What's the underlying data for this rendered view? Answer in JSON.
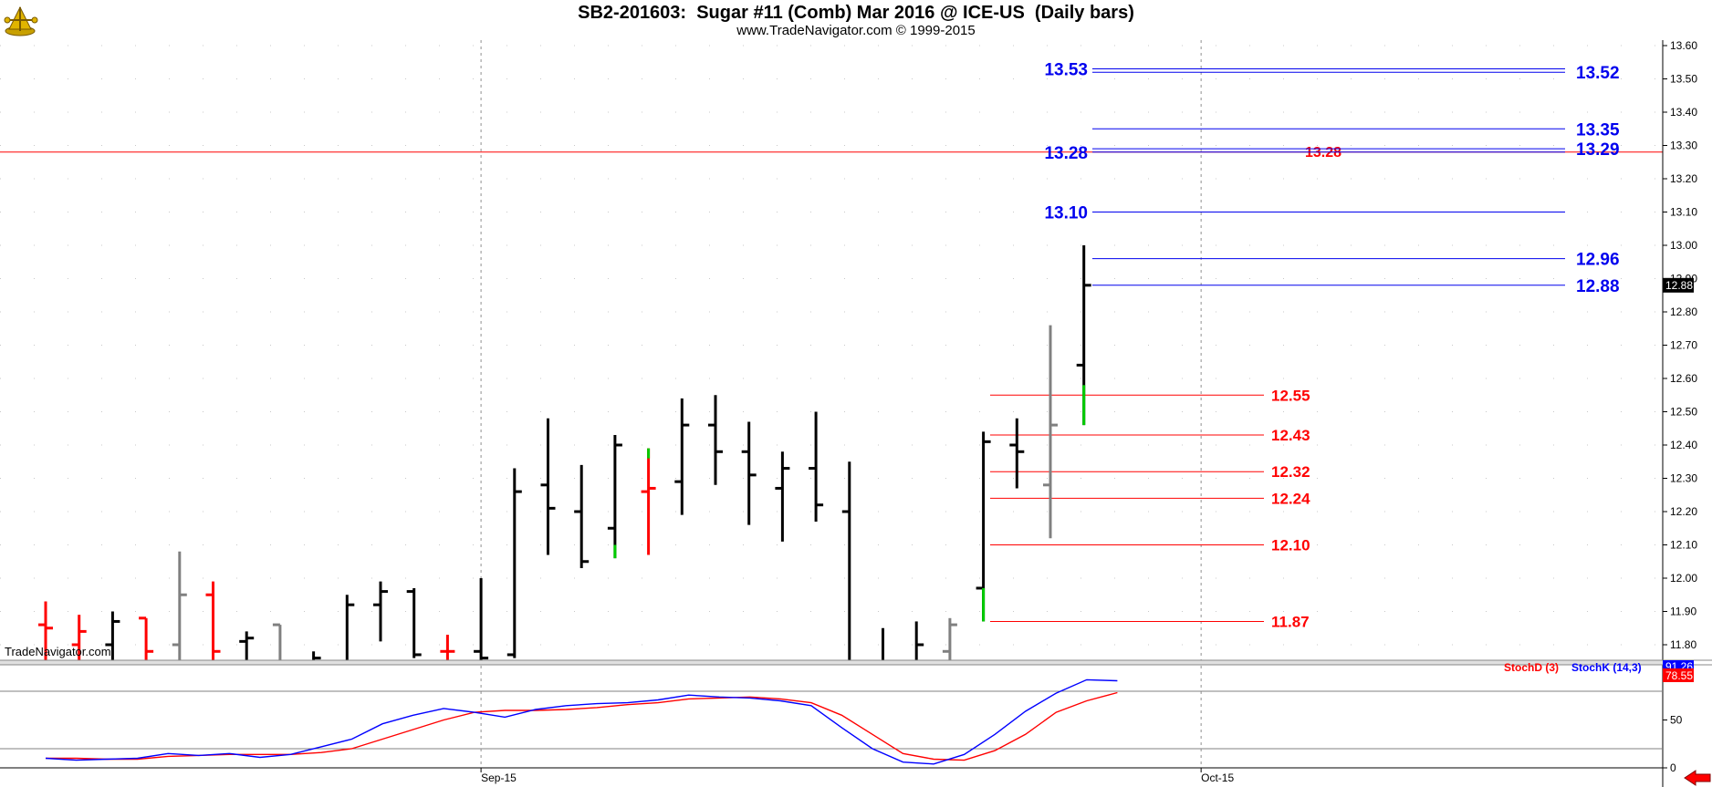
{
  "header": {
    "title": "SB2-201603:  Sugar #11 (Comb) Mar 2016 @ ICE-US  (Daily bars)",
    "subtitle": "www.TradeNavigator.com © 1999-2015",
    "watermark": "TradeNavigator.com"
  },
  "colors": {
    "up": "#000000",
    "down": "#000000",
    "red_bar": "#ff0000",
    "gray_bar": "#808080",
    "green_bar": "#00cc00",
    "blue_level": "#0000ee",
    "red_level": "#ff0000",
    "stoch_k": "#0000ff",
    "stoch_d": "#ff0000"
  },
  "chart_data": {
    "type": "bar",
    "price_axis": {
      "ylim": [
        11.75,
        13.6
      ],
      "ticks": [
        "13.60",
        "13.50",
        "13.40",
        "13.30",
        "13.20",
        "13.10",
        "13.00",
        "12.90",
        "12.80",
        "12.70",
        "12.60",
        "12.50",
        "12.40",
        "12.30",
        "12.20",
        "12.10",
        "12.00",
        "11.90",
        "11.80"
      ],
      "tick_values": [
        13.6,
        13.5,
        13.4,
        13.3,
        13.2,
        13.1,
        13.0,
        12.9,
        12.8,
        12.7,
        12.6,
        12.5,
        12.4,
        12.3,
        12.2,
        12.1,
        12.0,
        11.9,
        11.8
      ],
      "last_price": "12.88"
    },
    "x_axis": {
      "labels": [
        "Sep-15",
        "Oct-15"
      ],
      "label_bar_index": [
        13,
        34.5
      ]
    },
    "ohlc": [
      {
        "o": 11.86,
        "h": 11.93,
        "l": 11.6,
        "c": 11.85,
        "color": "red"
      },
      {
        "o": 11.8,
        "h": 11.89,
        "l": 11.6,
        "c": 11.84,
        "color": "red"
      },
      {
        "o": 11.8,
        "h": 11.9,
        "l": 11.6,
        "c": 11.87,
        "color": "black"
      },
      {
        "o": 11.88,
        "h": 11.88,
        "l": 11.6,
        "c": 11.78,
        "color": "red"
      },
      {
        "o": 11.8,
        "h": 12.08,
        "l": 11.6,
        "c": 11.95,
        "color": "gray"
      },
      {
        "o": 11.95,
        "h": 11.99,
        "l": 11.6,
        "c": 11.78,
        "color": "red"
      },
      {
        "o": 11.81,
        "h": 11.84,
        "l": 11.6,
        "c": 11.82,
        "color": "black"
      },
      {
        "o": 11.86,
        "h": 11.86,
        "l": 11.6,
        "c": 11.7,
        "color": "gray"
      },
      {
        "o": 11.7,
        "h": 11.78,
        "l": 11.6,
        "c": 11.76,
        "color": "black"
      },
      {
        "o": 11.7,
        "h": 11.95,
        "l": 11.6,
        "c": 11.92,
        "color": "black"
      },
      {
        "o": 11.92,
        "h": 11.99,
        "l": 11.81,
        "c": 11.96,
        "color": "black"
      },
      {
        "o": 11.96,
        "h": 11.97,
        "l": 11.76,
        "c": 11.77,
        "color": "black"
      },
      {
        "o": 11.78,
        "h": 11.83,
        "l": 11.73,
        "c": 11.78,
        "color": "red"
      },
      {
        "o": 11.78,
        "h": 12.0,
        "l": 11.73,
        "c": 11.76,
        "color": "black"
      },
      {
        "o": 11.77,
        "h": 12.33,
        "l": 11.76,
        "c": 12.26,
        "color": "black"
      },
      {
        "o": 12.28,
        "h": 12.48,
        "l": 12.07,
        "c": 12.21,
        "color": "black"
      },
      {
        "o": 12.2,
        "h": 12.34,
        "l": 12.03,
        "c": 12.05,
        "color": "black"
      },
      {
        "o": 12.15,
        "h": 12.43,
        "l": 12.06,
        "c": 12.4,
        "color": "black"
      },
      {
        "o": 12.26,
        "h": 12.39,
        "l": 12.07,
        "c": 12.27,
        "color": "red"
      },
      {
        "o": 12.29,
        "h": 12.54,
        "l": 12.19,
        "c": 12.46,
        "color": "black"
      },
      {
        "o": 12.46,
        "h": 12.55,
        "l": 12.28,
        "c": 12.38,
        "color": "black"
      },
      {
        "o": 12.38,
        "h": 12.47,
        "l": 12.16,
        "c": 12.31,
        "color": "black"
      },
      {
        "o": 12.27,
        "h": 12.38,
        "l": 12.11,
        "c": 12.33,
        "color": "black"
      },
      {
        "o": 12.33,
        "h": 12.5,
        "l": 12.17,
        "c": 12.22,
        "color": "black"
      },
      {
        "o": 12.2,
        "h": 12.35,
        "l": 11.6,
        "c": 11.68,
        "color": "black"
      },
      {
        "o": 11.68,
        "h": 11.85,
        "l": 11.6,
        "c": 11.7,
        "color": "black"
      },
      {
        "o": 11.72,
        "h": 11.87,
        "l": 11.6,
        "c": 11.8,
        "color": "black"
      },
      {
        "o": 11.78,
        "h": 11.88,
        "l": 11.6,
        "c": 11.86,
        "color": "gray"
      },
      {
        "o": 11.97,
        "h": 12.44,
        "l": 11.87,
        "c": 12.41,
        "color": "black"
      },
      {
        "o": 12.4,
        "h": 12.48,
        "l": 12.27,
        "c": 12.38,
        "color": "black"
      },
      {
        "o": 12.28,
        "h": 12.76,
        "l": 12.12,
        "c": 12.46,
        "color": "gray"
      },
      {
        "o": 12.64,
        "h": 13.0,
        "l": 12.46,
        "c": 12.88,
        "color": "black"
      }
    ],
    "blue_levels": [
      {
        "value": 13.53,
        "label": "13.53",
        "side": "left"
      },
      {
        "value": 13.52,
        "label": "13.52",
        "side": "right"
      },
      {
        "value": 13.35,
        "label": "13.35",
        "side": "right"
      },
      {
        "value": 13.29,
        "label": "13.29",
        "side": "right"
      },
      {
        "value": 13.28,
        "label": "13.28",
        "side": "left"
      },
      {
        "value": 13.1,
        "label": "13.10",
        "side": "left"
      },
      {
        "value": 12.96,
        "label": "12.96",
        "side": "right"
      },
      {
        "value": 12.88,
        "label": "12.88",
        "side": "right"
      }
    ],
    "red_levels": [
      {
        "value": 12.55,
        "label": "12.55"
      },
      {
        "value": 12.43,
        "label": "12.43"
      },
      {
        "value": 12.32,
        "label": "12.32"
      },
      {
        "value": 12.24,
        "label": "12.24"
      },
      {
        "value": 12.1,
        "label": "12.10"
      },
      {
        "value": 11.87,
        "label": "11.87"
      }
    ],
    "horizontal_line": {
      "value": 13.28,
      "label": "13.28"
    },
    "stochastic": {
      "ylim": [
        0,
        100
      ],
      "ticks": [
        "50",
        "0"
      ],
      "tick_values": [
        50,
        0
      ],
      "reference_lines": [
        80,
        20
      ],
      "legend": [
        {
          "name": "StochD (3)",
          "color": "#ff0000"
        },
        {
          "name": "StochK (14,3)",
          "color": "#0000ff"
        }
      ],
      "values_label": {
        "k": "91.26",
        "d": "78.55"
      },
      "k": [
        10,
        8,
        9,
        10,
        15,
        13,
        15,
        11,
        14,
        22,
        30,
        46,
        55,
        62,
        58,
        53,
        61,
        65,
        67,
        68,
        71,
        76,
        74,
        73,
        70,
        65,
        42,
        20,
        6,
        4,
        14,
        35,
        59,
        78,
        92,
        91
      ],
      "d": [
        10,
        10,
        9,
        9,
        12,
        13,
        14,
        14,
        14,
        16,
        20,
        30,
        40,
        50,
        58,
        60,
        60,
        61,
        63,
        66,
        68,
        72,
        73,
        74,
        72,
        68,
        55,
        35,
        15,
        9,
        8,
        18,
        35,
        58,
        70,
        78.55
      ]
    }
  }
}
